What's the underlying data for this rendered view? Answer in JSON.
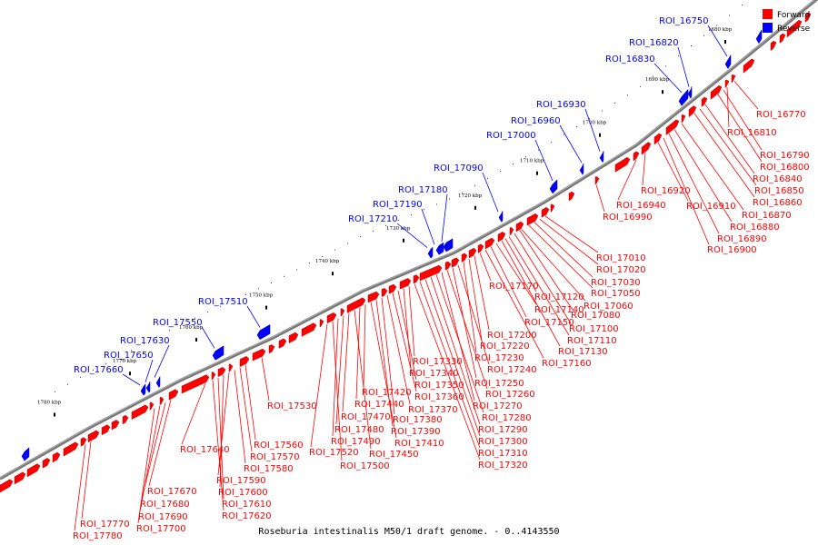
{
  "caption": "Roseburia intestinalis M50/1 draft genome. - 0..4143550",
  "legend": [
    {
      "label": "Forward",
      "color": "#ff0000"
    },
    {
      "label": "Reverse",
      "color": "#0000ff"
    }
  ],
  "ticks": [
    "1680 kbp",
    "1690 kbp",
    "1700 kbp",
    "1710 kbp",
    "1720 kbp",
    "1730 kbp",
    "1740 kbp",
    "1750 kbp",
    "1760 kbp",
    "1770 kbp",
    "1780 kbp"
  ],
  "forward_labels": [
    "ROI_16770",
    "ROI_16790",
    "ROI_16800",
    "ROI_16810",
    "ROI_16840",
    "ROI_16850",
    "ROI_16860",
    "ROI_16870",
    "ROI_16880",
    "ROI_16890",
    "ROI_16900",
    "ROI_16910",
    "ROI_16920",
    "ROI_16940",
    "ROI_16990",
    "ROI_17010",
    "ROI_17020",
    "ROI_17030",
    "ROI_17050",
    "ROI_17060",
    "ROI_17080",
    "ROI_17100",
    "ROI_17110",
    "ROI_17120",
    "ROI_17130",
    "ROI_17140",
    "ROI_17150",
    "ROI_17160",
    "ROI_17170",
    "ROI_17200",
    "ROI_17220",
    "ROI_17230",
    "ROI_17240",
    "ROI_17250",
    "ROI_17260",
    "ROI_17270",
    "ROI_17280",
    "ROI_17290",
    "ROI_17300",
    "ROI_17310",
    "ROI_17320",
    "ROI_17330",
    "ROI_17340",
    "ROI_17350",
    "ROI_17360",
    "ROI_17370",
    "ROI_17380",
    "ROI_17390",
    "ROI_17410",
    "ROI_17420",
    "ROI_17440",
    "ROI_17450",
    "ROI_17470",
    "ROI_17480",
    "ROI_17490",
    "ROI_17500",
    "ROI_17520",
    "ROI_17530",
    "ROI_17560",
    "ROI_17570",
    "ROI_17580",
    "ROI_17590",
    "ROI_17600",
    "ROI_17610",
    "ROI_17620",
    "ROI_17640",
    "ROI_17670",
    "ROI_17680",
    "ROI_17690",
    "ROI_17700",
    "ROI_17770",
    "ROI_17780"
  ],
  "reverse_labels": [
    "ROI_16750",
    "ROI_16820",
    "ROI_16830",
    "ROI_16930",
    "ROI_16960",
    "ROI_17000",
    "ROI_17090",
    "ROI_17180",
    "ROI_17190",
    "ROI_17210",
    "ROI_17510",
    "ROI_17550",
    "ROI_17630",
    "ROI_17650",
    "ROI_17660"
  ]
}
